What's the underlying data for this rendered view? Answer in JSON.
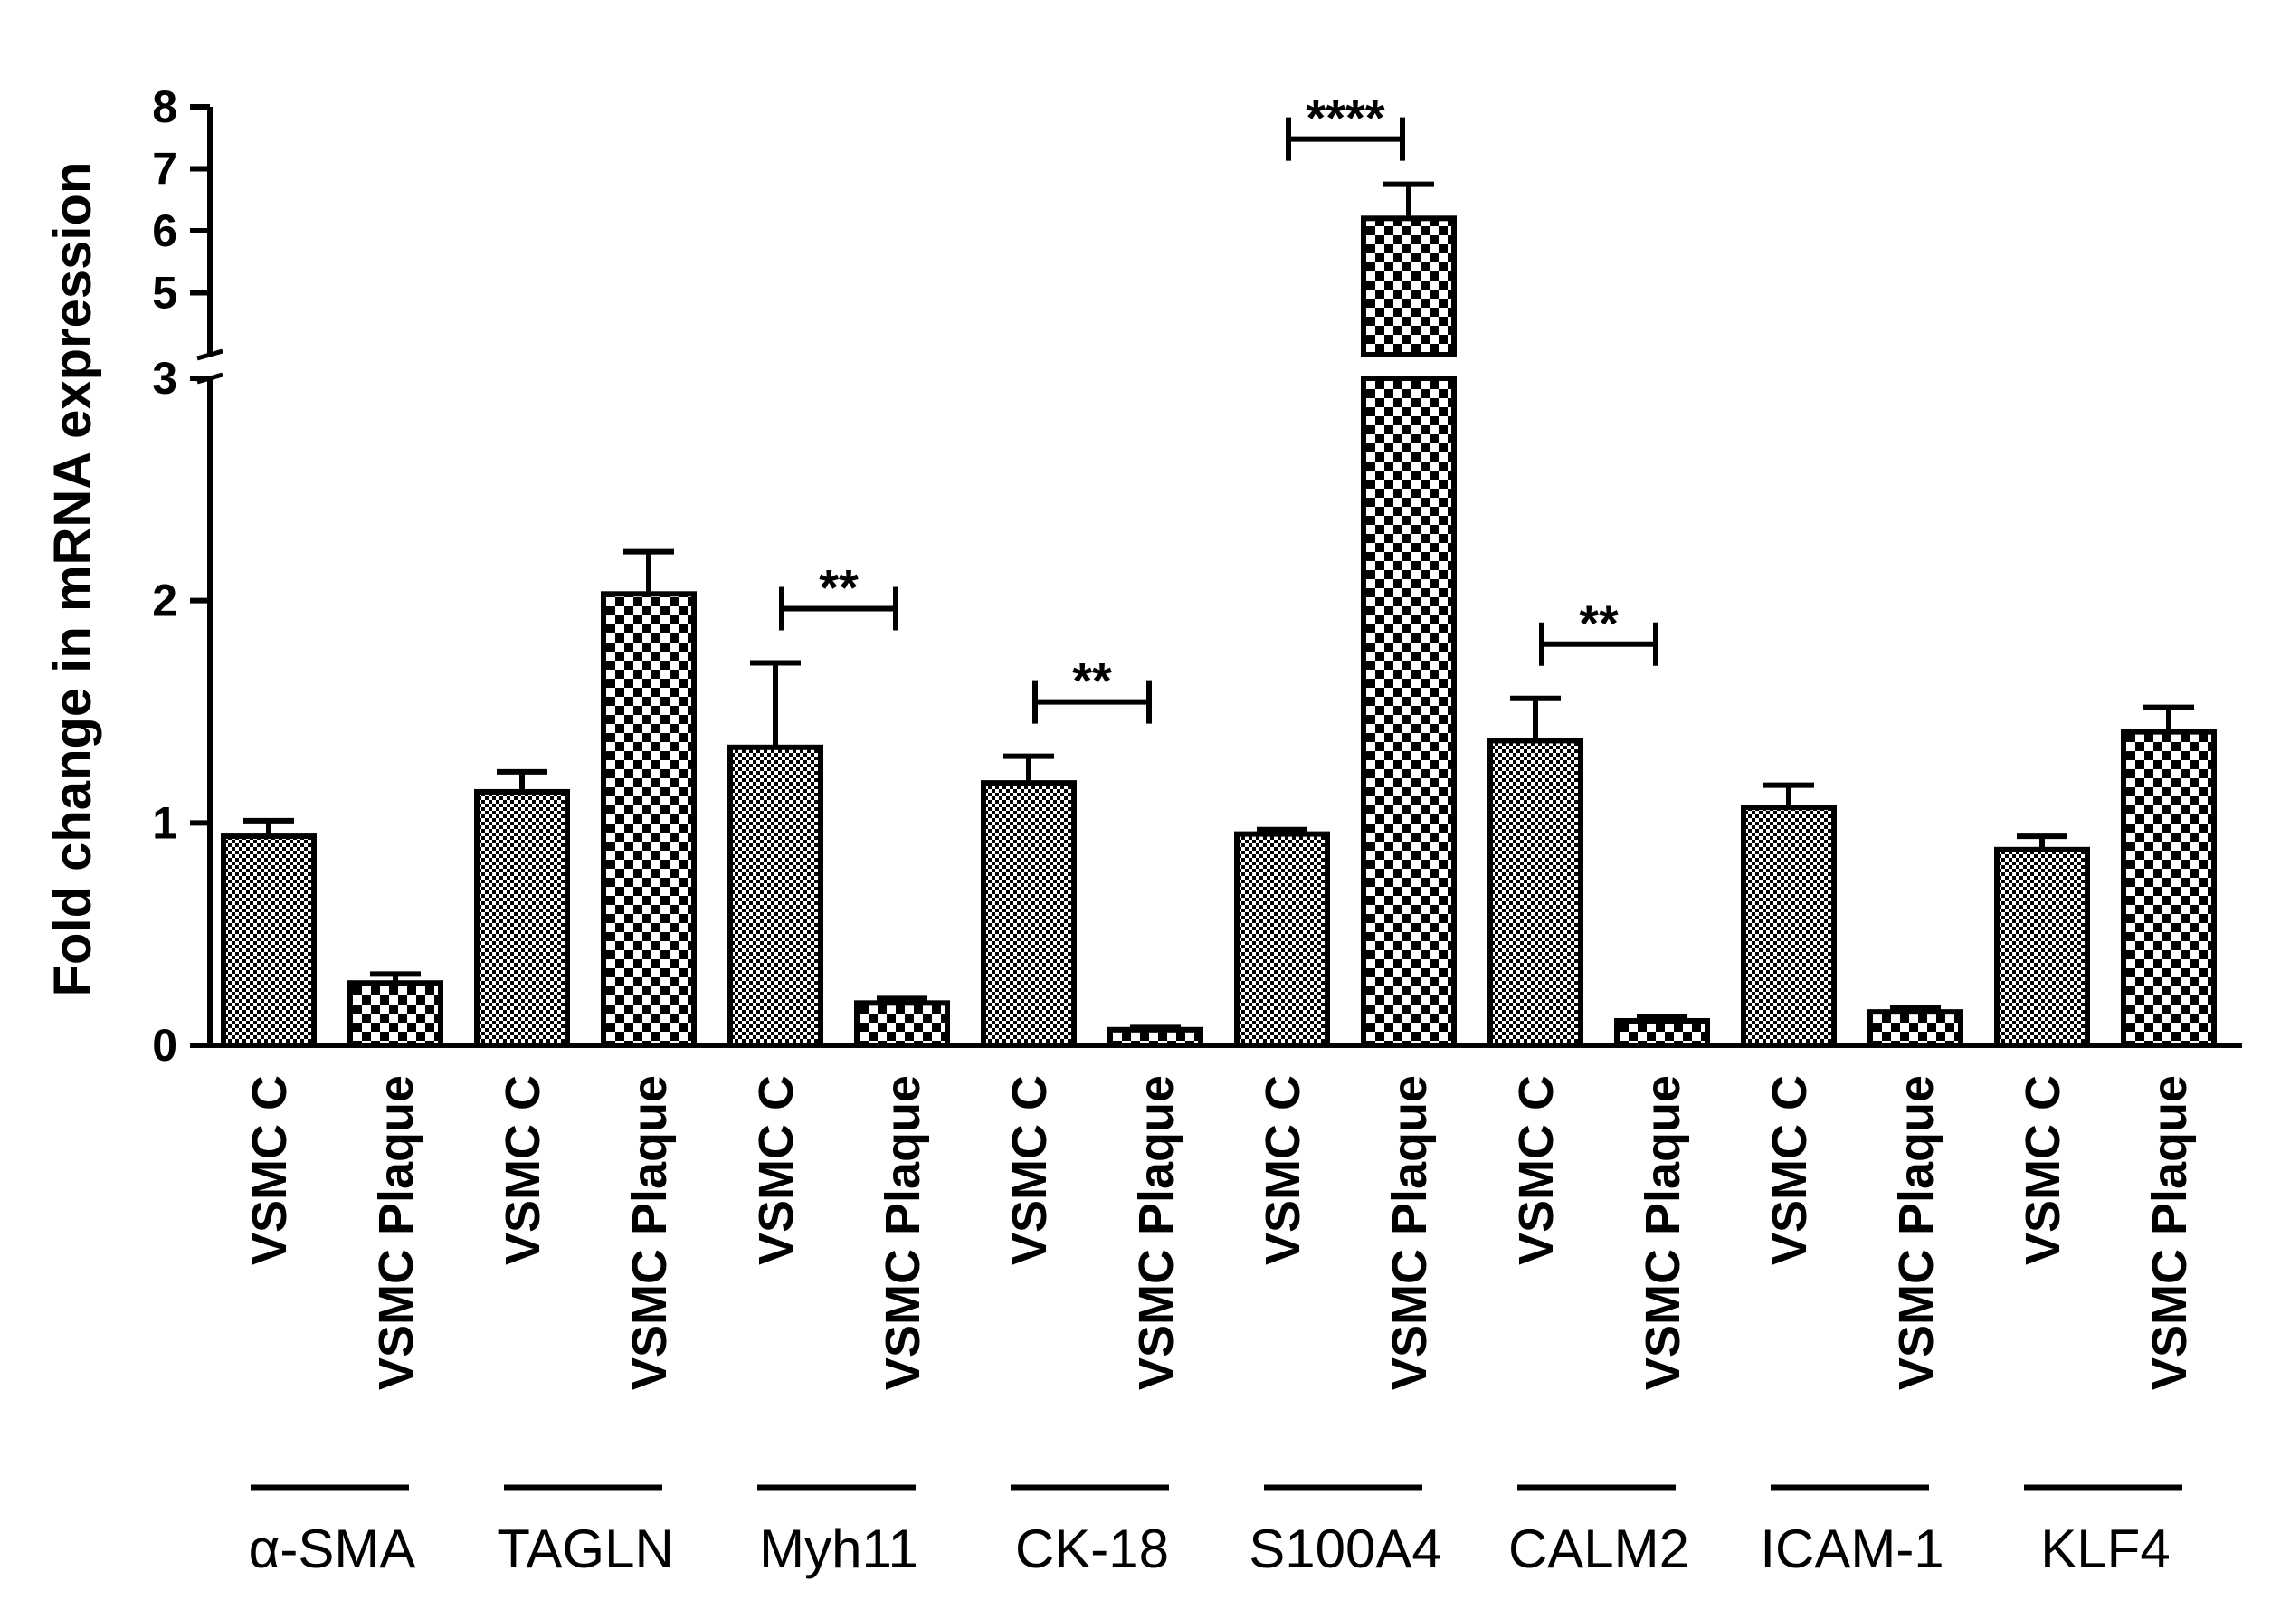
{
  "chart_data": {
    "type": "bar",
    "title": "",
    "ylabel": "Fold change in mRNA expression",
    "xlabel": "",
    "y_axis": {
      "lower_segment": [
        0,
        3
      ],
      "lower_ticks": [
        "0",
        "1",
        "2",
        "3"
      ],
      "upper_segment": [
        4,
        8
      ],
      "upper_ticks": [
        "5",
        "6",
        "7",
        "8"
      ],
      "broken": true
    },
    "groups": [
      "α-SMA",
      "TAGLN",
      "Myh11",
      "CK-18",
      "S100A4",
      "CALM2",
      "ICAM-1",
      "KLF4"
    ],
    "series": [
      {
        "name": "VSMC C",
        "pattern": "fine-checker",
        "values": [
          0.94,
          1.14,
          1.34,
          1.18,
          0.95,
          1.37,
          1.07,
          0.88
        ],
        "errors": [
          0.07,
          0.09,
          0.38,
          0.12,
          0.02,
          0.19,
          0.1,
          0.06
        ]
      },
      {
        "name": "VSMC Plaque",
        "pattern": "coarse-checker",
        "values": [
          0.28,
          2.03,
          0.19,
          0.07,
          6.2,
          0.11,
          0.15,
          1.41
        ],
        "errors": [
          0.04,
          0.19,
          0.02,
          0.01,
          0.55,
          0.02,
          0.02,
          0.11
        ]
      }
    ],
    "category_labels": [
      "VSMC C",
      "VSMC Plaque",
      "VSMC C",
      "VSMC Plaque",
      "VSMC C",
      "VSMC Plaque",
      "VSMC C",
      "VSMC Plaque",
      "VSMC C",
      "VSMC Plaque",
      "VSMC C",
      "VSMC Plaque",
      "VSMC C",
      "VSMC Plaque",
      "VSMC C",
      "VSMC Plaque"
    ],
    "significance": [
      {
        "group": "Myh11",
        "label": "**"
      },
      {
        "group": "CK-18",
        "label": "**"
      },
      {
        "group": "S100A4",
        "label": "****"
      },
      {
        "group": "CALM2",
        "label": "**"
      }
    ],
    "grid": false,
    "legend": "none"
  }
}
